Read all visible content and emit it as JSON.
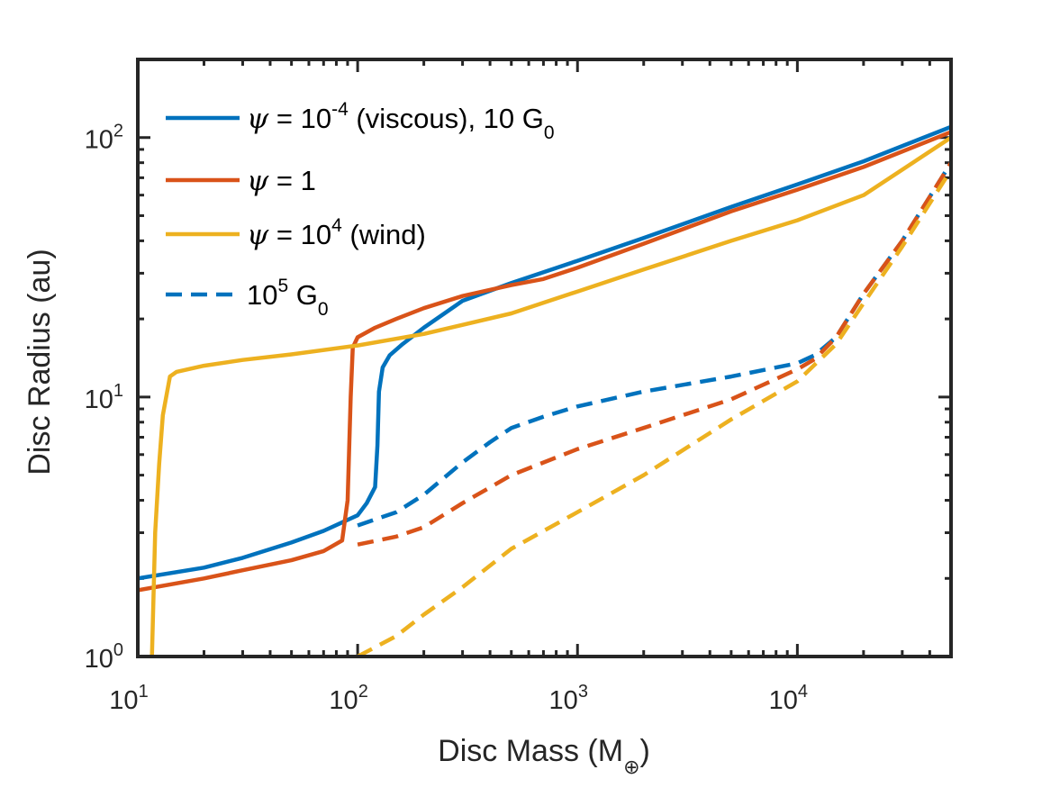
{
  "chart_data": {
    "type": "line",
    "xscale": "log",
    "yscale": "log",
    "xlim": [
      10,
      50000
    ],
    "ylim": [
      1,
      200
    ],
    "xlabel": "Disc Mass",
    "xlabel_unit": "M",
    "xlabel_unit_sub": "⊕",
    "xlabel_suffix": "",
    "ylabel": "Disc Radius (au)",
    "xticks": [
      {
        "value": 10,
        "base": "10",
        "exp": "1"
      },
      {
        "value": 100,
        "base": "10",
        "exp": "2"
      },
      {
        "value": 1000,
        "base": "10",
        "exp": "3"
      },
      {
        "value": 10000,
        "base": "10",
        "exp": "4"
      }
    ],
    "yticks": [
      {
        "value": 1,
        "base": "10",
        "exp": "0"
      },
      {
        "value": 10,
        "base": "10",
        "exp": "1"
      },
      {
        "value": 100,
        "base": "10",
        "exp": "2"
      }
    ],
    "legend_position": "top-left",
    "legend": [
      {
        "symbol": "ψ",
        "text_pre": " = 10",
        "sup": "-4",
        "text_post": " (viscous), 10 G",
        "sub": "0",
        "color": "#0072bd",
        "style": "solid"
      },
      {
        "symbol": "ψ",
        "text_pre": " = 1",
        "sup": "",
        "text_post": "",
        "sub": "",
        "color": "#d95319",
        "style": "solid"
      },
      {
        "symbol": "ψ",
        "text_pre": " = 10",
        "sup": "4",
        "text_post": " (wind)",
        "sub": "",
        "color": "#edb120",
        "style": "solid"
      },
      {
        "symbol": "",
        "text_pre": "10",
        "sup": "5",
        "text_post": " G",
        "sub": "0",
        "color": "#0072bd",
        "style": "dashed"
      }
    ],
    "series": [
      {
        "name": "psi 1e-4 viscous, 10 G0",
        "color": "#0072bd",
        "style": "solid",
        "x": [
          10,
          20,
          30,
          50,
          70,
          100,
          110,
          120,
          123,
          125,
          130,
          140,
          160,
          200,
          300,
          500,
          1000,
          2000,
          5000,
          10000,
          20000,
          50000
        ],
        "y": [
          2.0,
          2.2,
          2.4,
          2.75,
          3.05,
          3.5,
          3.9,
          4.5,
          6.5,
          10.5,
          13.0,
          14.5,
          16.0,
          18.5,
          23.5,
          27.5,
          33.5,
          41.0,
          54.0,
          66.0,
          81.0,
          110.0
        ]
      },
      {
        "name": "psi 1",
        "color": "#d95319",
        "style": "solid",
        "x": [
          10,
          20,
          30,
          50,
          70,
          85,
          90,
          93,
          95,
          100,
          120,
          150,
          200,
          300,
          500,
          700,
          1000,
          2000,
          5000,
          10000,
          20000,
          50000
        ],
        "y": [
          1.8,
          2.0,
          2.15,
          2.35,
          2.55,
          2.8,
          4.0,
          10.0,
          15.5,
          17.0,
          18.5,
          20.0,
          22.0,
          24.5,
          27.0,
          28.5,
          31.5,
          39.0,
          52.0,
          63.0,
          77.0,
          105.0
        ]
      },
      {
        "name": "psi 1e4 wind",
        "color": "#edb120",
        "style": "solid",
        "x": [
          11.6,
          12.0,
          12.5,
          13.0,
          14.0,
          15.0,
          20,
          30,
          50,
          100,
          200,
          500,
          1000,
          2000,
          5000,
          10000,
          20000,
          50000
        ],
        "y": [
          1.0,
          3.0,
          5.5,
          8.5,
          12.0,
          12.5,
          13.2,
          13.9,
          14.6,
          15.8,
          17.5,
          21.0,
          25.5,
          31.0,
          40.0,
          48.0,
          60.0,
          100.0
        ]
      },
      {
        "name": "psi 1e-4, 1e5 G0",
        "color": "#0072bd",
        "style": "dashed",
        "x": [
          100,
          150,
          200,
          300,
          400,
          500,
          700,
          1000,
          2000,
          5000,
          10000,
          12000,
          15000,
          20000,
          30000,
          50000
        ],
        "y": [
          3.2,
          3.6,
          4.2,
          5.6,
          6.7,
          7.6,
          8.4,
          9.2,
          10.5,
          12.0,
          13.5,
          14.5,
          17.0,
          25.0,
          40.0,
          80.0
        ]
      },
      {
        "name": "psi 1, 1e5 G0",
        "color": "#d95319",
        "style": "dashed",
        "x": [
          100,
          150,
          200,
          300,
          500,
          1000,
          2000,
          5000,
          10000,
          12000,
          15000,
          20000,
          30000,
          50000
        ],
        "y": [
          2.7,
          2.9,
          3.15,
          3.9,
          5.0,
          6.3,
          7.6,
          9.8,
          12.8,
          14.0,
          17.0,
          25.0,
          40.0,
          80.0
        ]
      },
      {
        "name": "psi 1e4, 1e5 G0",
        "color": "#edb120",
        "style": "dashed",
        "x": [
          100,
          150,
          200,
          300,
          500,
          1000,
          2000,
          5000,
          10000,
          15000,
          20000,
          30000,
          50000
        ],
        "y": [
          1.0,
          1.2,
          1.45,
          1.85,
          2.6,
          3.6,
          5.0,
          8.2,
          11.5,
          16.0,
          23.0,
          38.0,
          75.0
        ]
      }
    ]
  }
}
